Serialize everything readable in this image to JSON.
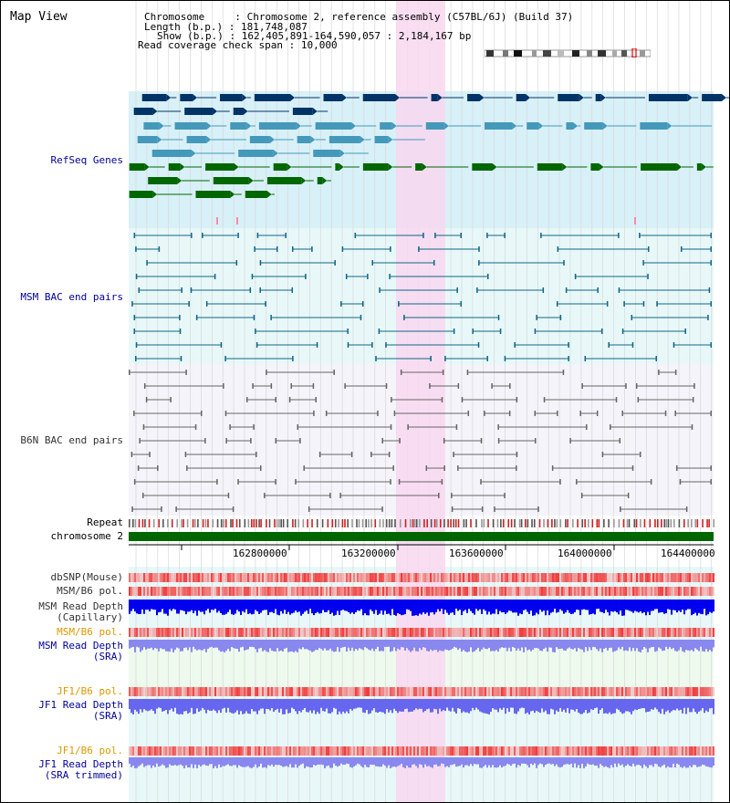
{
  "window": {
    "title": "Map View"
  },
  "info": {
    "chromosome_key": "Chromosome",
    "chromosome_val": "Chromosome 2, reference assembly (C57BL/6J) (Build 37)",
    "length_key": "Length (b.p.)",
    "length_val": "181,748,087",
    "show_key": "Show (b.p.)",
    "show_val": "162,405,891-164,590,057 : 2,184,167 bp",
    "coverage_key": "Read coverage check span",
    "coverage_val": "10,000"
  },
  "tracks": {
    "refseq": "RefSeq Genes",
    "msm_bac": "MSM BAC end pairs",
    "b6n_bac": "B6N BAC end pairs",
    "repeat": "Repeat",
    "chromosome": "chromosome 2",
    "dbsnp": "dbSNP(Mouse)",
    "msm_pol1": "MSM/B6 pol.",
    "msm_depth_cap_1": "MSM Read Depth",
    "msm_depth_cap_2": "(Capillary)",
    "msm_pol2": "MSM/B6 pol.",
    "msm_depth_sra_1": "MSM Read Depth",
    "msm_depth_sra_2": "(SRA)",
    "jf1_pol1": "JF1/B6 pol.",
    "jf1_depth_1": "JF1 Read Depth",
    "jf1_depth_2": "(SRA)",
    "jf1_pol2": "JF1/B6 pol.",
    "jf1_trim_1": "JF1 Read Depth",
    "jf1_trim_2": "(SRA trimmed)"
  },
  "axis": {
    "ticks": [
      "162800000",
      "163200000",
      "163600000",
      "164000000",
      "164400000"
    ]
  },
  "colors": {
    "highlight": "#f8d8f0",
    "refseq_bg": "#d8f0f8",
    "msm_bac_bg": "#e8f8f8",
    "b6n_bac_bg": "#f4f4fa",
    "chrom_bar": "#006600",
    "label_blue": "#000099",
    "label_orange": "#dd9900",
    "label_grey": "#333333",
    "depth_blue": "#0000ee",
    "depth_light": "#8888ee"
  }
}
